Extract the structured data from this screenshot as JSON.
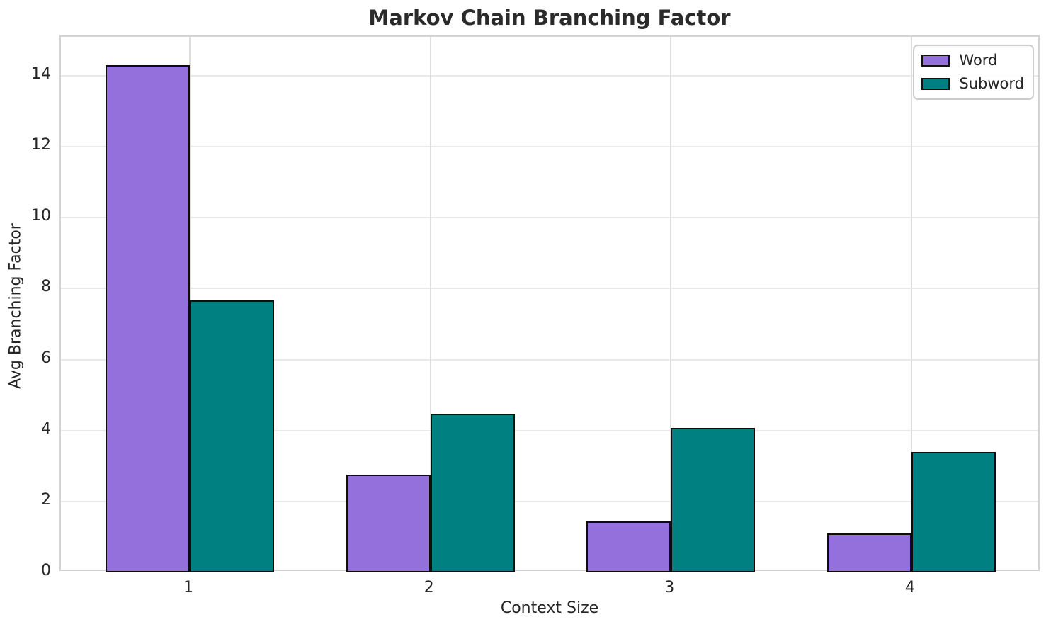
{
  "chart_data": {
    "type": "bar",
    "title": "Markov Chain Branching Factor",
    "xlabel": "Context Size",
    "ylabel": "Avg Branching Factor",
    "categories": [
      "1",
      "2",
      "3",
      "4"
    ],
    "series": [
      {
        "name": "Word",
        "color": "#9370DB",
        "values": [
          14.3,
          2.76,
          1.44,
          1.1
        ]
      },
      {
        "name": "Subword",
        "color": "#008080",
        "values": [
          7.67,
          4.48,
          4.08,
          3.4
        ]
      }
    ],
    "yticks": [
      0,
      2,
      4,
      6,
      8,
      10,
      12,
      14
    ],
    "ylim": [
      0,
      15.1
    ],
    "grid": true,
    "legend_position": "upper right",
    "bar_edge_color": "#0d0d0d"
  }
}
